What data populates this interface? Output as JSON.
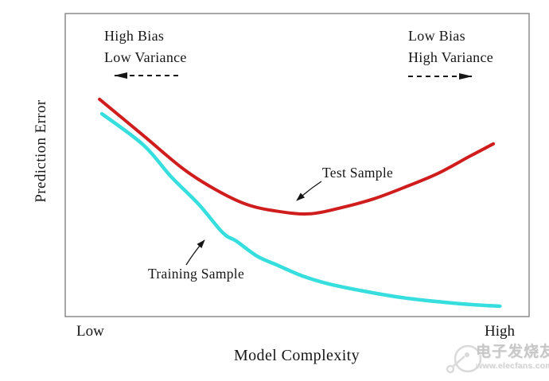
{
  "chart_data": {
    "type": "line",
    "title": "",
    "xlabel": "Model Complexity",
    "ylabel": "Prediction Error",
    "x_ticks": [
      "Low",
      "High"
    ],
    "y_ticks": [],
    "axes_note": "Qualitative axes: no numeric scale shown; series points are normalized fractions of the plot area (x: Low=0 to High=1, y: error 0 bottom to 1 top).",
    "grid": false,
    "legend": "none (curves labeled by in-plot annotations)",
    "series": [
      {
        "name": "Test Sample",
        "color": "#cf1d1d",
        "points": [
          [
            0.074,
            0.717
          ],
          [
            0.168,
            0.598
          ],
          [
            0.254,
            0.488
          ],
          [
            0.323,
            0.42
          ],
          [
            0.391,
            0.37
          ],
          [
            0.46,
            0.347
          ],
          [
            0.528,
            0.339
          ],
          [
            0.597,
            0.36
          ],
          [
            0.666,
            0.389
          ],
          [
            0.734,
            0.428
          ],
          [
            0.803,
            0.472
          ],
          [
            0.871,
            0.528
          ],
          [
            0.923,
            0.57
          ]
        ]
      },
      {
        "name": "Training Sample",
        "color": "#36dede",
        "points": [
          [
            0.079,
            0.669
          ],
          [
            0.168,
            0.567
          ],
          [
            0.228,
            0.462
          ],
          [
            0.288,
            0.37
          ],
          [
            0.34,
            0.276
          ],
          [
            0.369,
            0.249
          ],
          [
            0.413,
            0.2
          ],
          [
            0.455,
            0.171
          ],
          [
            0.511,
            0.134
          ],
          [
            0.568,
            0.108
          ],
          [
            0.654,
            0.081
          ],
          [
            0.739,
            0.06
          ],
          [
            0.854,
            0.042
          ],
          [
            0.937,
            0.034
          ]
        ]
      }
    ],
    "annotations": {
      "left_region": {
        "lines": [
          "High Bias",
          "Low Variance"
        ],
        "arrow_direction": "left-dashed"
      },
      "right_region": {
        "lines": [
          "Low Bias",
          "High Variance"
        ],
        "arrow_direction": "right-dashed"
      },
      "test_label": {
        "text": "Test Sample",
        "points_to": "test curve near its minimum"
      },
      "training_label": {
        "text": "Training Sample",
        "points_to": "training curve mid-descent"
      }
    }
  },
  "colors": {
    "test_curve": "#cf1d1d",
    "training_curve": "#36dede",
    "frame": "#8c8c8c",
    "text": "#161616",
    "watermark": "#c7c7c7"
  },
  "watermark": {
    "brand_text": "电子发烧友",
    "site_url": "www.elecfans.com"
  }
}
